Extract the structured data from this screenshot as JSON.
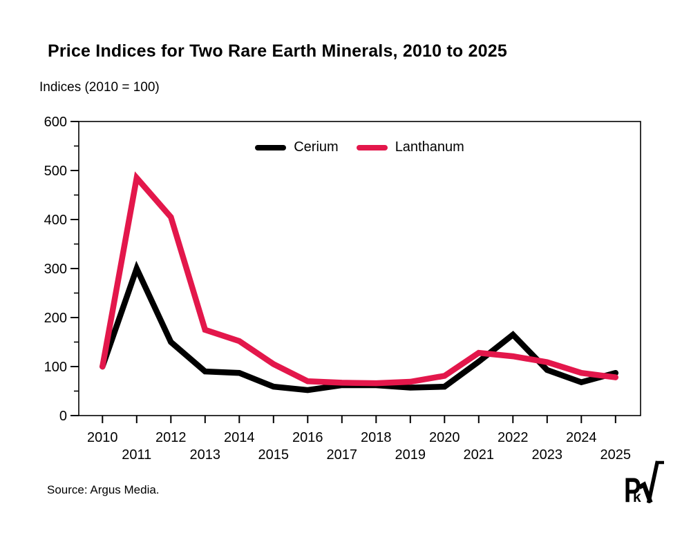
{
  "page": {
    "title": "Price Indices for Two Rare Earth Minerals, 2010 to 2025",
    "subtitle": "Indices (2010 = 100)",
    "source": "Source: Argus Media."
  },
  "legend": {
    "cerium_label": "Cerium",
    "lanthanum_label": "Lanthanum"
  },
  "logo": {
    "letter_p": "P",
    "letter_k": "k",
    "radical_symbol": "√"
  },
  "colors": {
    "cerium": "#000000",
    "lanthanum": "#e3174b",
    "axis": "#000000",
    "background": "#ffffff"
  },
  "chart_data": {
    "type": "line",
    "title": "Price Indices for Two Rare Earth Minerals, 2010 to 2025",
    "ylabel": "Indices (2010 = 100)",
    "xlabel": "",
    "x": [
      2010,
      2011,
      2012,
      2013,
      2014,
      2015,
      2016,
      2017,
      2018,
      2019,
      2020,
      2021,
      2022,
      2023,
      2024,
      2025
    ],
    "series": [
      {
        "name": "Cerium",
        "color": "#000000",
        "values": [
          100,
          300,
          150,
          90,
          87,
          59,
          52,
          62,
          62,
          57,
          59,
          110,
          165,
          93,
          68,
          87
        ]
      },
      {
        "name": "Lanthanum",
        "color": "#e3174b",
        "values": [
          100,
          485,
          405,
          175,
          152,
          105,
          70,
          67,
          66,
          69,
          81,
          128,
          121,
          109,
          87,
          78
        ]
      }
    ],
    "ylim": [
      0,
      600
    ],
    "ytick_major": 100,
    "ytick_minor": 50,
    "x_label_rows": "staggered (even years upper row, odd years lower row)",
    "legend_position": "top-center",
    "grid": false
  }
}
